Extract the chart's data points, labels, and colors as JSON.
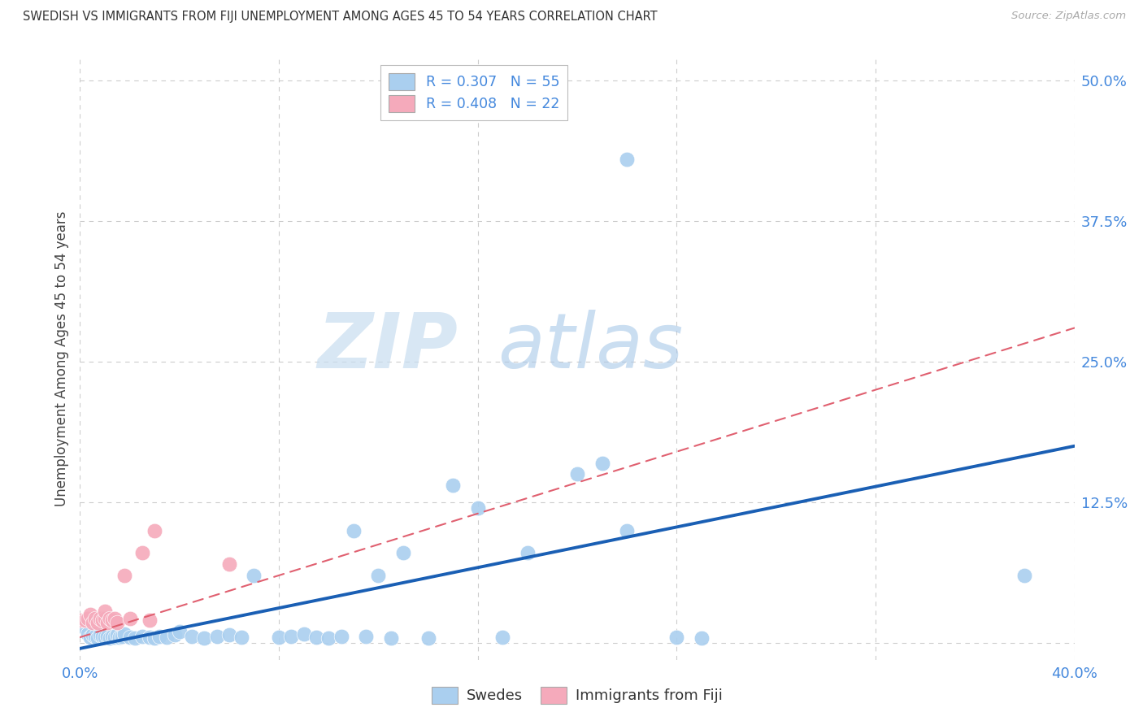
{
  "title": "SWEDISH VS IMMIGRANTS FROM FIJI UNEMPLOYMENT AMONG AGES 45 TO 54 YEARS CORRELATION CHART",
  "source": "Source: ZipAtlas.com",
  "ylabel": "Unemployment Among Ages 45 to 54 years",
  "xlim": [
    0.0,
    0.4
  ],
  "ylim": [
    -0.015,
    0.52
  ],
  "swedes_R": 0.307,
  "swedes_N": 55,
  "fiji_R": 0.408,
  "fiji_N": 22,
  "swedes_color": "#aacfef",
  "fiji_color": "#f5aabb",
  "trend_swedes_color": "#1a5fb4",
  "trend_fiji_color": "#e06070",
  "watermark_zip": "ZIP",
  "watermark_atlas": "atlas",
  "swedes_x": [
    0.0,
    0.003,
    0.004,
    0.005,
    0.006,
    0.007,
    0.008,
    0.009,
    0.01,
    0.011,
    0.012,
    0.013,
    0.014,
    0.015,
    0.016,
    0.017,
    0.018,
    0.02,
    0.022,
    0.025,
    0.028,
    0.03,
    0.032,
    0.035,
    0.038,
    0.04,
    0.045,
    0.05,
    0.055,
    0.06,
    0.065,
    0.07,
    0.08,
    0.085,
    0.09,
    0.095,
    0.1,
    0.105,
    0.11,
    0.115,
    0.12,
    0.125,
    0.13,
    0.14,
    0.15,
    0.16,
    0.17,
    0.18,
    0.2,
    0.21,
    0.22,
    0.24,
    0.25,
    0.38,
    0.22
  ],
  "swedes_y": [
    0.015,
    0.008,
    0.005,
    0.007,
    0.006,
    0.004,
    0.007,
    0.006,
    0.005,
    0.006,
    0.004,
    0.006,
    0.005,
    0.007,
    0.005,
    0.006,
    0.008,
    0.005,
    0.004,
    0.006,
    0.005,
    0.004,
    0.006,
    0.005,
    0.007,
    0.01,
    0.006,
    0.004,
    0.006,
    0.007,
    0.005,
    0.06,
    0.005,
    0.006,
    0.008,
    0.005,
    0.004,
    0.006,
    0.1,
    0.006,
    0.06,
    0.004,
    0.08,
    0.004,
    0.14,
    0.12,
    0.005,
    0.08,
    0.15,
    0.16,
    0.1,
    0.005,
    0.004,
    0.06,
    0.43
  ],
  "fiji_x": [
    0.0,
    0.002,
    0.003,
    0.004,
    0.005,
    0.006,
    0.007,
    0.008,
    0.009,
    0.01,
    0.01,
    0.011,
    0.012,
    0.013,
    0.014,
    0.015,
    0.018,
    0.02,
    0.025,
    0.028,
    0.03,
    0.06
  ],
  "fiji_y": [
    0.02,
    0.02,
    0.022,
    0.025,
    0.018,
    0.022,
    0.018,
    0.022,
    0.02,
    0.022,
    0.028,
    0.018,
    0.022,
    0.02,
    0.022,
    0.018,
    0.06,
    0.022,
    0.08,
    0.02,
    0.1,
    0.07
  ],
  "trend_sw_x0": 0.0,
  "trend_sw_y0": -0.005,
  "trend_sw_x1": 0.4,
  "trend_sw_y1": 0.175,
  "trend_fi_x0": 0.0,
  "trend_fi_y0": 0.005,
  "trend_fi_x1": 0.4,
  "trend_fi_y1": 0.28
}
